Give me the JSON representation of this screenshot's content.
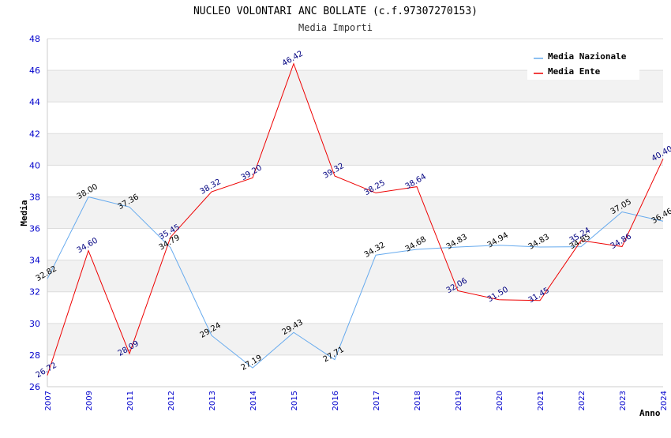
{
  "chart_data": {
    "type": "line",
    "title": "NUCLEO VOLONTARI ANC BOLLATE (c.f.97307270153)",
    "subtitle": "Media Importi",
    "xlabel": "Anno",
    "ylabel": "Media",
    "ylim": [
      26,
      48
    ],
    "yticks": [
      "26",
      "28",
      "30",
      "32",
      "34",
      "36",
      "38",
      "40",
      "42",
      "44",
      "46",
      "48"
    ],
    "categories": [
      "2007",
      "2009",
      "2011",
      "2012",
      "2013",
      "2014",
      "2015",
      "2016",
      "2017",
      "2018",
      "2019",
      "2020",
      "2021",
      "2022",
      "2023",
      "2024"
    ],
    "grid": true,
    "legend_position": "top-right",
    "series": [
      {
        "name": "Media Nazionale",
        "color": "#66aaee",
        "values": [
          32.82,
          38.0,
          37.36,
          34.79,
          29.24,
          27.19,
          29.43,
          27.71,
          34.32,
          34.68,
          34.83,
          34.94,
          34.83,
          34.85,
          37.05,
          36.46
        ],
        "labels": [
          "32.82",
          "38.00",
          "37.36",
          "34.79",
          "29.24",
          "27.19",
          "29.43",
          "27.71",
          "34.32",
          "34.68",
          "34.83",
          "34.94",
          "34.83",
          "34.85",
          "37.05",
          "36.46"
        ]
      },
      {
        "name": "Media Ente",
        "color": "#ee0000",
        "values": [
          26.72,
          34.6,
          28.09,
          35.45,
          38.32,
          39.2,
          46.42,
          39.32,
          38.25,
          38.64,
          32.06,
          31.5,
          31.45,
          35.24,
          34.86,
          40.4
        ],
        "labels": [
          "26.72",
          "34.60",
          "28.09",
          "35.45",
          "38.32",
          "39.20",
          "46.42",
          "39.32",
          "38.25",
          "38.64",
          "32.06",
          "31.50",
          "31.45",
          "35.24",
          "34.86",
          "40.40"
        ]
      }
    ]
  }
}
